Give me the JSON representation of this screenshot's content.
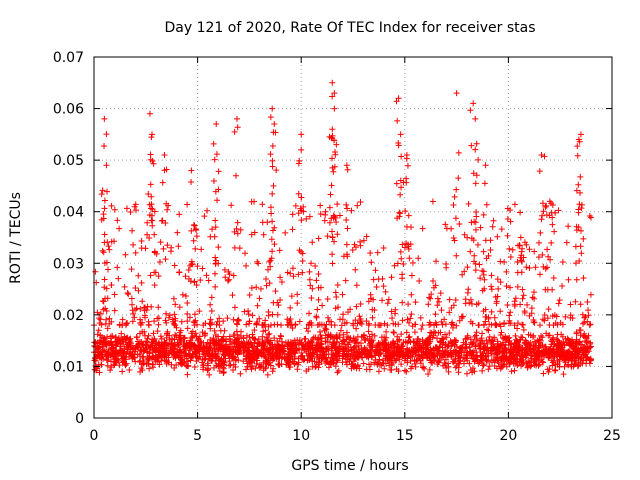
{
  "chart_data": {
    "type": "scatter",
    "title": "Day 121 of 2020, Rate Of TEC Index for receiver stas",
    "xlabel": "GPS time / hours",
    "ylabel": "ROTI / TECUs",
    "xlim": [
      0,
      25
    ],
    "ylim": [
      0,
      0.07
    ],
    "xticks": [
      0,
      5,
      10,
      15,
      20,
      25
    ],
    "xtick_labels": [
      "0",
      "5",
      "10",
      "15",
      "20",
      "25"
    ],
    "yticks": [
      0,
      0.01,
      0.02,
      0.03,
      0.04,
      0.05,
      0.06,
      0.07
    ],
    "ytick_labels": [
      "0",
      "0.01",
      "0.02",
      "0.03",
      "0.04",
      "0.05",
      "0.06",
      "0.07"
    ],
    "grid": true,
    "marker": "+",
    "color": "#ff0000",
    "series": [
      {
        "name": "ROTI",
        "x_range": [
          0,
          24
        ],
        "y_baseline_range": [
          0.005,
          0.025
        ],
        "y_typical": 0.013,
        "peaks": [
          {
            "x": 0.5,
            "y": 0.058
          },
          {
            "x": 0.6,
            "y": 0.049
          },
          {
            "x": 2.7,
            "y": 0.059
          },
          {
            "x": 2.8,
            "y": 0.055
          },
          {
            "x": 3.4,
            "y": 0.051
          },
          {
            "x": 4.7,
            "y": 0.048
          },
          {
            "x": 5.9,
            "y": 0.057
          },
          {
            "x": 6.9,
            "y": 0.058
          },
          {
            "x": 8.6,
            "y": 0.06
          },
          {
            "x": 8.7,
            "y": 0.057
          },
          {
            "x": 10.0,
            "y": 0.055
          },
          {
            "x": 10.0,
            "y": 0.052
          },
          {
            "x": 11.5,
            "y": 0.065
          },
          {
            "x": 11.6,
            "y": 0.063
          },
          {
            "x": 11.6,
            "y": 0.06
          },
          {
            "x": 11.5,
            "y": 0.056
          },
          {
            "x": 12.2,
            "y": 0.049
          },
          {
            "x": 14.7,
            "y": 0.062
          },
          {
            "x": 14.8,
            "y": 0.055
          },
          {
            "x": 15.1,
            "y": 0.051
          },
          {
            "x": 17.5,
            "y": 0.063
          },
          {
            "x": 18.3,
            "y": 0.061
          },
          {
            "x": 18.4,
            "y": 0.058
          },
          {
            "x": 18.9,
            "y": 0.049
          },
          {
            "x": 21.6,
            "y": 0.051
          },
          {
            "x": 23.5,
            "y": 0.055
          },
          {
            "x": 23.4,
            "y": 0.054
          },
          {
            "x": 22.0,
            "y": 0.042
          },
          {
            "x": 20.6,
            "y": 0.035
          }
        ]
      }
    ]
  }
}
